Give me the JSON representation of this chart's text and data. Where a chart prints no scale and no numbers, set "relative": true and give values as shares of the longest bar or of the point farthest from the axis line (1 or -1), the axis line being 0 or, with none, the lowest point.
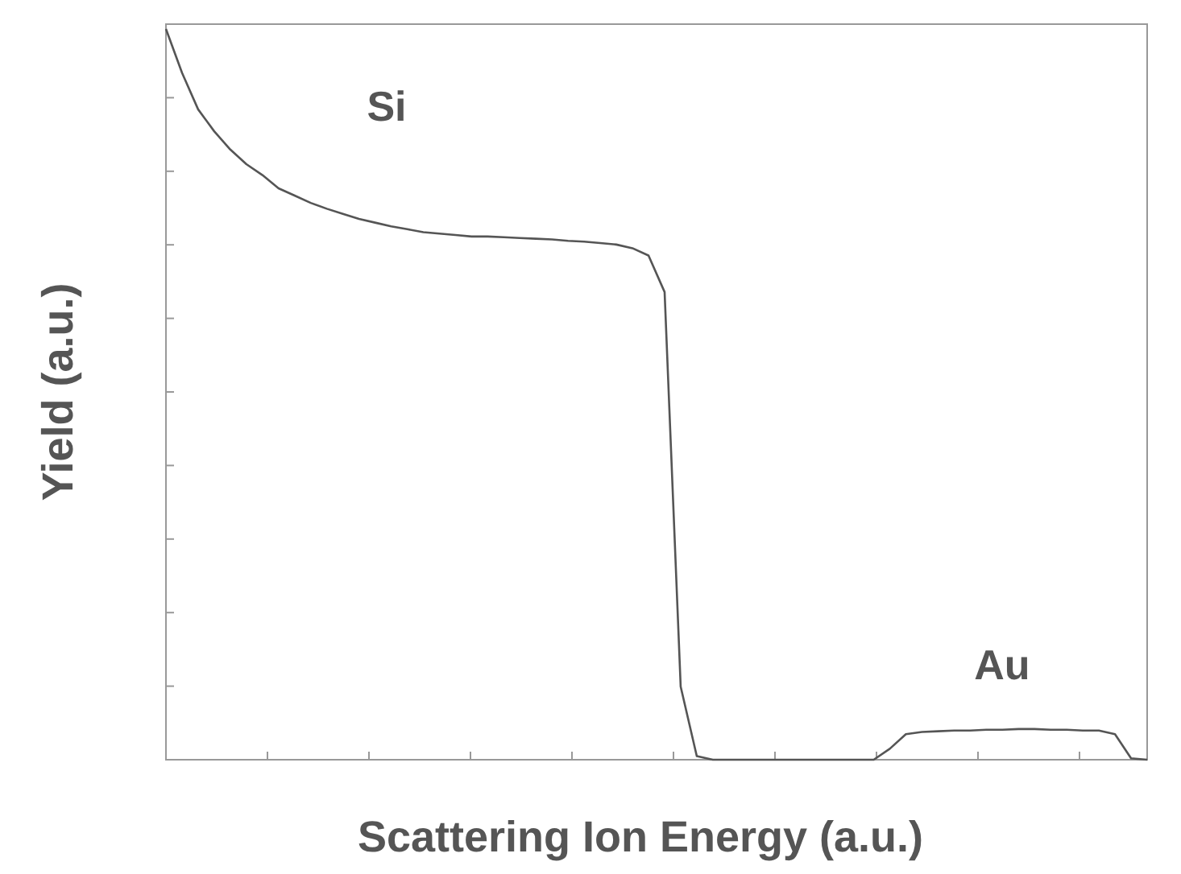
{
  "chart_data": {
    "type": "line",
    "relative": true,
    "xlabel": "Scattering Ion Energy (a.u.)",
    "ylabel": "Yield (a.u.)",
    "categories": [
      null,
      null,
      null,
      null,
      null,
      null,
      null,
      null,
      null,
      null,
      null,
      null,
      null,
      null,
      null,
      null,
      null,
      null,
      null,
      null,
      null,
      null,
      null,
      null,
      null,
      null,
      null,
      null,
      null,
      null,
      null,
      null,
      null,
      null,
      null,
      null,
      null,
      null,
      null,
      null,
      null,
      null,
      null,
      null,
      null,
      null,
      null,
      null,
      null,
      null,
      null,
      null,
      null,
      null,
      null,
      null,
      null,
      null,
      null,
      null,
      null,
      null
    ],
    "series": [
      {
        "color": "#555555",
        "values": [
          1.0,
          0.94,
          0.89,
          0.86,
          0.835,
          0.815,
          0.8,
          0.782,
          0.772,
          0.762,
          0.754,
          0.747,
          0.74,
          0.735,
          0.73,
          0.726,
          0.722,
          0.72,
          0.718,
          0.716,
          0.716,
          0.715,
          0.714,
          0.713,
          0.712,
          0.71,
          0.709,
          0.707,
          0.705,
          0.7,
          0.69,
          0.64,
          0.1,
          0.005,
          0,
          0,
          0,
          0,
          0,
          0,
          0,
          0,
          0,
          0,
          0,
          0.015,
          0.035,
          0.038,
          0.039,
          0.04,
          0.04,
          0.041,
          0.041,
          0.042,
          0.042,
          0.041,
          0.041,
          0.04,
          0.04,
          0.035,
          0.002,
          0
        ]
      }
    ],
    "annotations": [
      "Si",
      "Au"
    ],
    "marker": "none",
    "line_style": "solid"
  }
}
